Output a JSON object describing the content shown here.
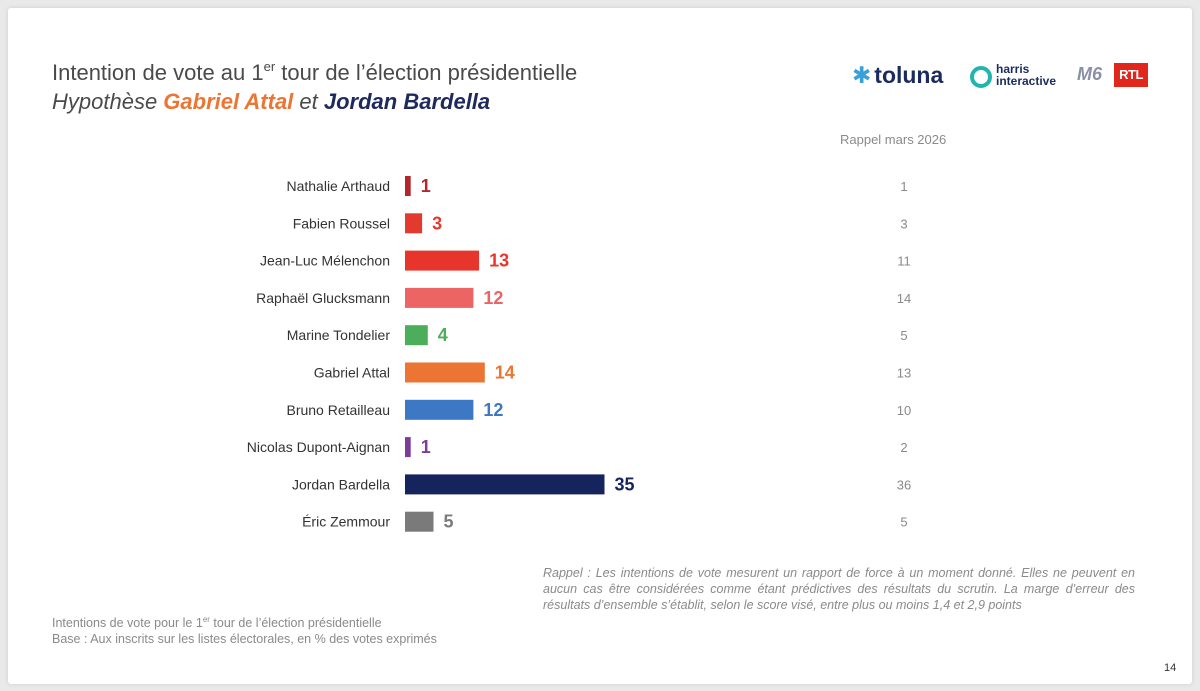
{
  "title": {
    "line1_pre": "Intention de vote au 1",
    "line1_sup": "er",
    "line1_post": " tour de l’élection présidentielle",
    "line2_pre": "Hypothèse ",
    "line2_name1": "Gabriel Attal",
    "line2_mid": " et ",
    "line2_name2": "Jordan Bardella"
  },
  "logos": {
    "toluna": "toluna",
    "harris_line1": "harris",
    "harris_line2": "interactive",
    "m6": "M6",
    "rtl": "RTL"
  },
  "rappel_header": "Rappel mars 2026",
  "chart_data": {
    "type": "bar",
    "orientation": "horizontal",
    "categories": [
      "Nathalie Arthaud",
      "Fabien Roussel",
      "Jean-Luc Mélenchon",
      "Raphaël Glucksmann",
      "Marine Tondelier",
      "Gabriel Attal",
      "Bruno Retailleau",
      "Nicolas Dupont-Aignan",
      "Jordan Bardella",
      "Éric Zemmour"
    ],
    "values": [
      1,
      3,
      13,
      12,
      4,
      14,
      12,
      1,
      35,
      5
    ],
    "colors": [
      "#b3262b",
      "#e23b2e",
      "#e8352b",
      "#ec6464",
      "#4cae5b",
      "#ec7533",
      "#3c78c3",
      "#7d3c98",
      "#16245e",
      "#7a7a7a"
    ],
    "rappel_values": [
      1,
      3,
      11,
      14,
      5,
      13,
      10,
      2,
      36,
      5
    ],
    "xlim": [
      0,
      36
    ],
    "grid": false,
    "title": "",
    "xlabel": "",
    "ylabel": ""
  },
  "note_rappel": "Rappel : Les intentions de vote mesurent un rapport de force à un moment donné. Elles ne peuvent en aucun cas être considérées comme étant prédictives des résultats du scrutin. La marge d’erreur des résultats d’ensemble s’établit, selon le score visé, entre plus ou moins 1,4 et 2,9 points",
  "footer": {
    "line1_pre": "Intentions de vote pour le 1",
    "line1_sup": "er",
    "line1_post": " tour de l’élection présidentielle",
    "line2": "Base : Aux inscrits sur les listes électorales, en % des votes exprimés"
  },
  "page_number": "14"
}
